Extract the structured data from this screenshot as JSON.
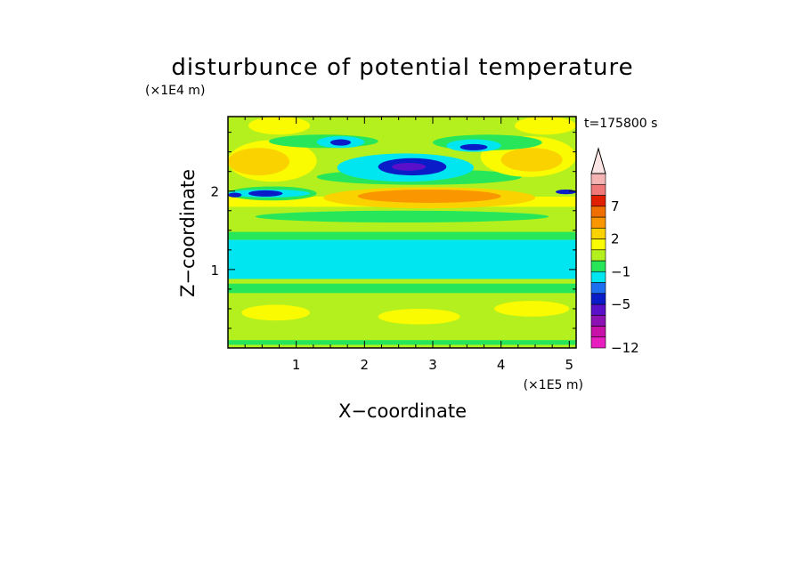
{
  "chart_data": {
    "type": "heatmap",
    "title": "disturbunce of potential temperature",
    "xlabel": "X−coordinate",
    "ylabel": "Z−coordinate",
    "x_unit": "(×1E5 m)",
    "y_unit": "(×1E4 m)",
    "time_label": "t=175800 s",
    "xlim": [
      0,
      5.1
    ],
    "ylim": [
      0,
      2.95
    ],
    "x_ticks": [
      1,
      2,
      3,
      4,
      5
    ],
    "y_ticks": [
      1,
      2
    ],
    "x_tick_labels": [
      "1",
      "2",
      "3",
      "4",
      "5"
    ],
    "y_tick_labels": [
      "1",
      "2"
    ],
    "x_minor_step": 0.25,
    "y_minor_step": 0.25,
    "colorbar": {
      "levels": [
        -12,
        -10,
        -8,
        -6,
        -5,
        -3,
        -2,
        -1,
        0,
        1,
        2,
        3,
        5,
        7,
        9,
        11
      ],
      "colors": [
        "#e81ec0",
        "#c811a8",
        "#8c12b4",
        "#5a10c8",
        "#0a1cc8",
        "#1e6ef0",
        "#00e6f0",
        "#28e65a",
        "#b4f01e",
        "#fafa00",
        "#fad200",
        "#fa9600",
        "#f06e00",
        "#e11e00",
        "#f07878",
        "#f5b4b4"
      ],
      "extend_color": "#fde4e4",
      "tick_labels": [
        "7",
        "2",
        "−1",
        "−5",
        "−12"
      ]
    },
    "regions": [
      {
        "value": 0.5,
        "x": [
          0,
          5.1
        ],
        "z": [
          0,
          2.95
        ]
      },
      {
        "value": -0.5,
        "x": [
          0,
          5.1
        ],
        "z": [
          0.04,
          0.1
        ]
      },
      {
        "value": 1.5,
        "x": [
          0.2,
          1.2
        ],
        "z": [
          0.35,
          0.55
        ]
      },
      {
        "value": 1.5,
        "x": [
          2.2,
          3.4
        ],
        "z": [
          0.3,
          0.5
        ]
      },
      {
        "value": 1.5,
        "x": [
          3.9,
          5.0
        ],
        "z": [
          0.4,
          0.6
        ]
      },
      {
        "value": -0.5,
        "x": [
          0,
          5.1
        ],
        "z": [
          0.7,
          0.82
        ]
      },
      {
        "value": -1.5,
        "x": [
          0,
          5.1
        ],
        "z": [
          0.88,
          1.38
        ]
      },
      {
        "value": -0.5,
        "x": [
          0,
          5.1
        ],
        "z": [
          1.38,
          1.48
        ]
      },
      {
        "value": -0.5,
        "x": [
          0.4,
          4.7
        ],
        "z": [
          1.6,
          1.75
        ]
      },
      {
        "value": 1.5,
        "x": [
          0,
          5.1
        ],
        "z": [
          1.8,
          1.93
        ]
      },
      {
        "value": 2.5,
        "x": [
          1.4,
          4.5
        ],
        "z": [
          1.78,
          2.05
        ]
      },
      {
        "value": 4,
        "x": [
          1.9,
          4.0
        ],
        "z": [
          1.85,
          2.02
        ]
      },
      {
        "value": -0.5,
        "x": [
          0,
          1.3
        ],
        "z": [
          1.88,
          2.06
        ]
      },
      {
        "value": -1.5,
        "x": [
          0,
          1.2
        ],
        "z": [
          1.92,
          2.02
        ]
      },
      {
        "value": -4,
        "x": [
          0.3,
          0.8
        ],
        "z": [
          1.93,
          2.01
        ]
      },
      {
        "value": -4,
        "x": [
          0.0,
          0.2
        ],
        "z": [
          1.92,
          1.98
        ]
      },
      {
        "value": -4,
        "x": [
          4.8,
          5.1
        ],
        "z": [
          1.96,
          2.02
        ]
      },
      {
        "value": -0.5,
        "x": [
          1.3,
          4.3
        ],
        "z": [
          2.08,
          2.28
        ]
      },
      {
        "value": -1.5,
        "x": [
          1.6,
          3.6
        ],
        "z": [
          2.12,
          2.48
        ]
      },
      {
        "value": -4,
        "x": [
          2.2,
          3.2
        ],
        "z": [
          2.2,
          2.42
        ]
      },
      {
        "value": -5.5,
        "x": [
          2.4,
          2.9
        ],
        "z": [
          2.26,
          2.36
        ]
      },
      {
        "value": 1.5,
        "x": [
          0,
          1.3
        ],
        "z": [
          2.12,
          2.65
        ]
      },
      {
        "value": 2.5,
        "x": [
          0,
          0.9
        ],
        "z": [
          2.2,
          2.55
        ]
      },
      {
        "value": 1.5,
        "x": [
          3.7,
          5.1
        ],
        "z": [
          2.18,
          2.7
        ]
      },
      {
        "value": 2.5,
        "x": [
          4.0,
          4.9
        ],
        "z": [
          2.25,
          2.55
        ]
      },
      {
        "value": -0.5,
        "x": [
          0.6,
          2.2
        ],
        "z": [
          2.55,
          2.72
        ]
      },
      {
        "value": -0.5,
        "x": [
          3.0,
          4.6
        ],
        "z": [
          2.52,
          2.72
        ]
      },
      {
        "value": -1.5,
        "x": [
          1.3,
          2.0
        ],
        "z": [
          2.55,
          2.7
        ]
      },
      {
        "value": -4,
        "x": [
          1.5,
          1.8
        ],
        "z": [
          2.58,
          2.66
        ]
      },
      {
        "value": -1.5,
        "x": [
          3.2,
          4.0
        ],
        "z": [
          2.5,
          2.66
        ]
      },
      {
        "value": -4,
        "x": [
          3.4,
          3.8
        ],
        "z": [
          2.52,
          2.6
        ]
      },
      {
        "value": 1.5,
        "x": [
          0.3,
          1.2
        ],
        "z": [
          2.72,
          2.95
        ]
      },
      {
        "value": 1.5,
        "x": [
          4.2,
          5.1
        ],
        "z": [
          2.72,
          2.95
        ]
      }
    ]
  }
}
